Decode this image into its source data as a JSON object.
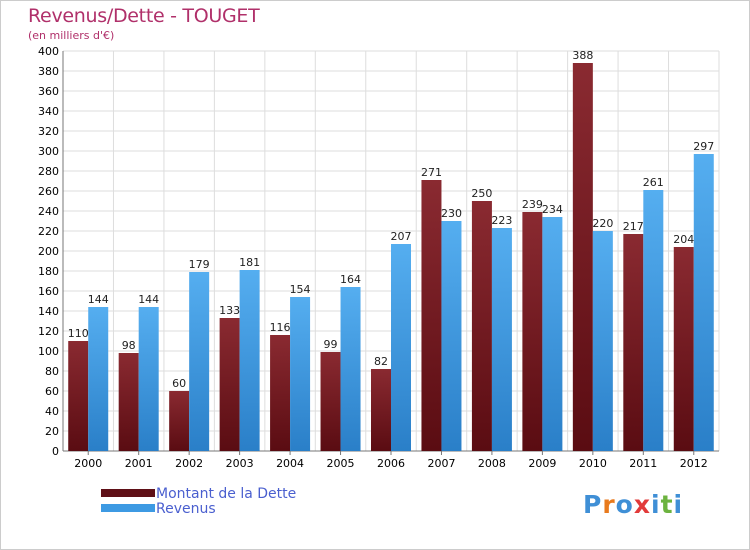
{
  "header": {
    "title": "Revenus/Dette - TOUGET",
    "subtitle": "(en milliers d'€)"
  },
  "legend": {
    "items": [
      {
        "label": "Montant de la Dette",
        "color": "#7b1f26"
      },
      {
        "label": "Revenus",
        "color": "#3d9ae3"
      }
    ]
  },
  "logo": {
    "text": "Proxiti",
    "colors": [
      "#3f8fd6",
      "#e87a1d",
      "#3f8fd6",
      "#e23a3a",
      "#3f8fd6",
      "#6cb33f",
      "#3f8fd6"
    ]
  },
  "chart_data": {
    "type": "bar",
    "title": "Revenus/Dette - TOUGET",
    "ylabel": "(en milliers d'€)",
    "xlabel": "",
    "categories": [
      "2000",
      "2001",
      "2002",
      "2003",
      "2004",
      "2005",
      "2006",
      "2007",
      "2008",
      "2009",
      "2010",
      "2011",
      "2012"
    ],
    "series": [
      {
        "name": "Montant de la Dette",
        "color": "#7b1f26",
        "values": [
          110,
          98,
          60,
          133,
          116,
          99,
          82,
          271,
          250,
          239,
          388,
          217,
          204
        ]
      },
      {
        "name": "Revenus",
        "color": "#3d9ae3",
        "values": [
          144,
          144,
          179,
          181,
          154,
          164,
          207,
          230,
          223,
          234,
          220,
          261,
          297
        ]
      }
    ],
    "ylim": [
      0,
      400
    ],
    "yticks": [
      0,
      20,
      40,
      60,
      80,
      100,
      120,
      140,
      160,
      180,
      200,
      220,
      240,
      260,
      280,
      300,
      320,
      340,
      360,
      380,
      400
    ],
    "grid": true,
    "legend_position": "bottom-left"
  }
}
